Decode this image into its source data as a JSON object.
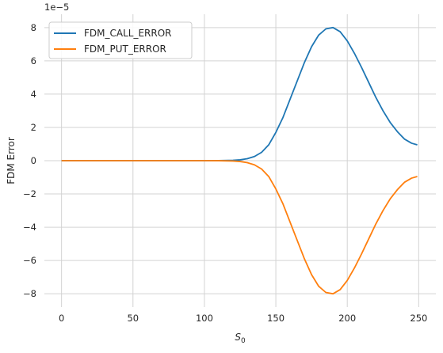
{
  "chart_data": {
    "type": "line",
    "title": "",
    "xlabel": "S",
    "xlabel_subscript": "0",
    "ylabel": "FDM Error",
    "y_scale_label": "1e−5",
    "xlim": [
      -12,
      262
    ],
    "ylim": [
      -8.8,
      8.8
    ],
    "x_ticks": [
      0,
      50,
      100,
      150,
      200,
      250
    ],
    "y_ticks": [
      -8,
      -6,
      -4,
      -2,
      0,
      2,
      4,
      6,
      8
    ],
    "x_tick_labels": [
      "0",
      "50",
      "100",
      "150",
      "200",
      "250"
    ],
    "y_tick_labels": [
      "−8",
      "−6",
      "−4",
      "−2",
      "0",
      "2",
      "4",
      "6",
      "8"
    ],
    "grid": true,
    "legend_position": "top-left",
    "series": [
      {
        "name": "FDM_CALL_ERROR",
        "color": "#1f77b4",
        "x": [
          0,
          50,
          100,
          110,
          120,
          125,
          130,
          135,
          140,
          145,
          150,
          155,
          160,
          165,
          170,
          175,
          180,
          185,
          190,
          195,
          200,
          205,
          210,
          215,
          220,
          225,
          230,
          235,
          240,
          245,
          249
        ],
        "y": [
          0,
          0,
          0,
          0.002,
          0.02,
          0.05,
          0.12,
          0.25,
          0.5,
          0.95,
          1.7,
          2.6,
          3.7,
          4.8,
          5.9,
          6.85,
          7.55,
          7.92,
          8.0,
          7.75,
          7.2,
          6.45,
          5.6,
          4.7,
          3.8,
          3.0,
          2.3,
          1.75,
          1.3,
          1.05,
          0.95
        ]
      },
      {
        "name": "FDM_PUT_ERROR",
        "color": "#ff7f0e",
        "x": [
          0,
          50,
          100,
          110,
          120,
          125,
          130,
          135,
          140,
          145,
          150,
          155,
          160,
          165,
          170,
          175,
          180,
          185,
          190,
          195,
          200,
          205,
          210,
          215,
          220,
          225,
          230,
          235,
          240,
          245,
          249
        ],
        "y": [
          0,
          0,
          0,
          -0.002,
          -0.02,
          -0.05,
          -0.12,
          -0.25,
          -0.5,
          -0.95,
          -1.7,
          -2.6,
          -3.7,
          -4.8,
          -5.9,
          -6.85,
          -7.55,
          -7.92,
          -8.0,
          -7.75,
          -7.2,
          -6.45,
          -5.6,
          -4.7,
          -3.8,
          -3.0,
          -2.3,
          -1.75,
          -1.3,
          -1.05,
          -0.95
        ]
      }
    ]
  }
}
